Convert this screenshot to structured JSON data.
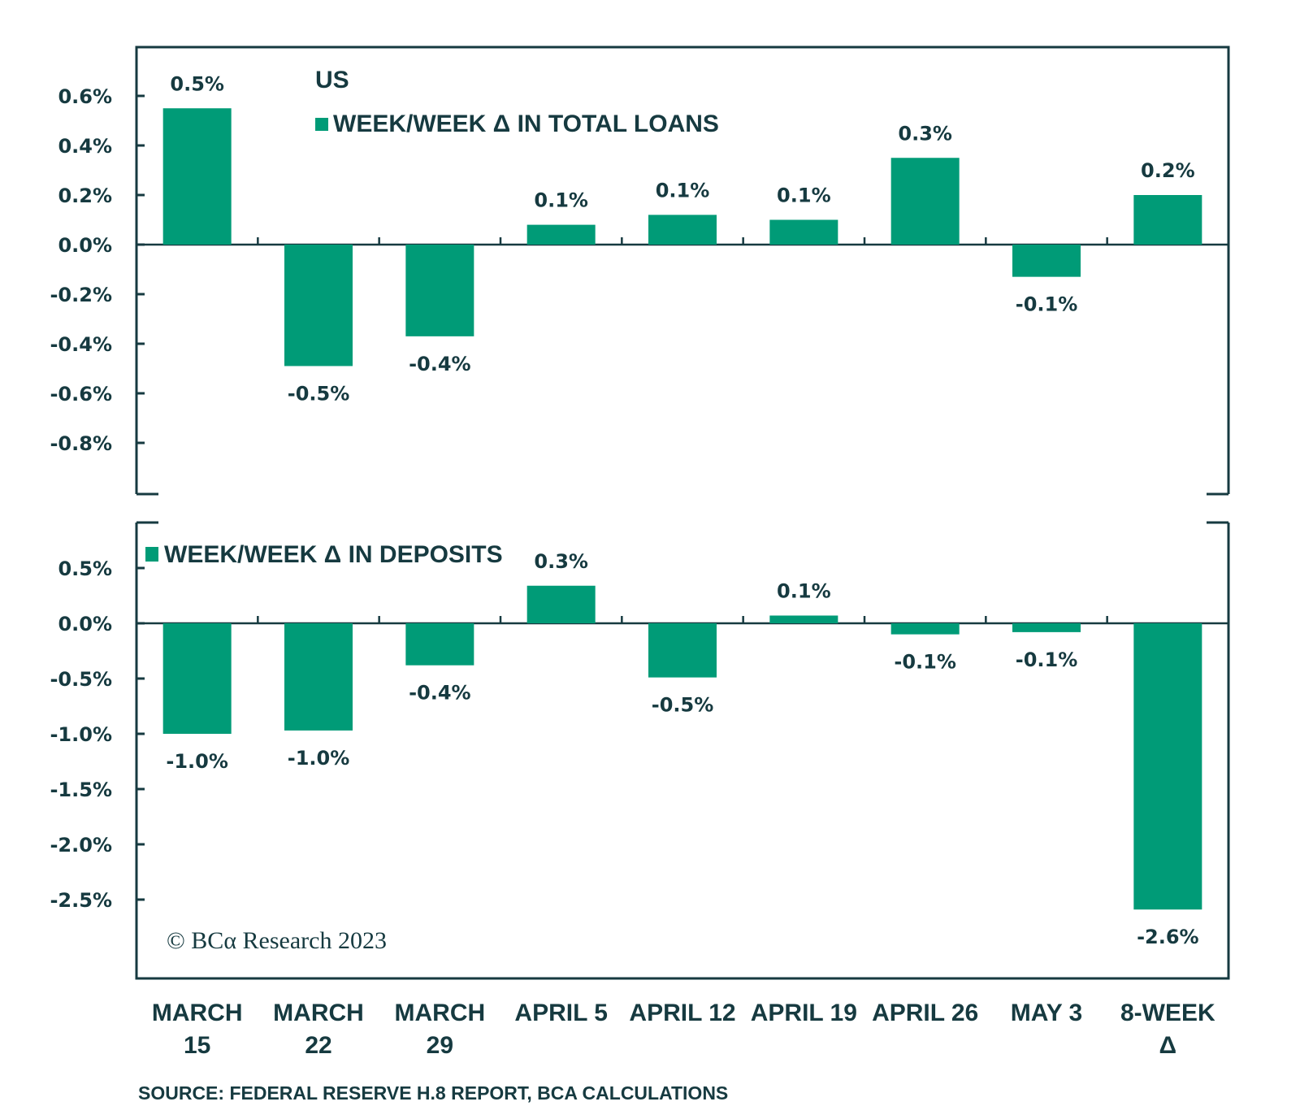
{
  "chart_data": [
    {
      "type": "bar",
      "panel": "top",
      "title": "US",
      "legend": [
        "WEEK/WEEK Δ IN TOTAL LOANS"
      ],
      "legend_position": "top-left",
      "categories": [
        "MARCH 15",
        "MARCH 22",
        "MARCH 29",
        "APRIL 5",
        "APRIL 12",
        "APRIL 19",
        "APRIL 26",
        "MAY 3",
        "8-WEEK Δ"
      ],
      "values": [
        0.55,
        -0.49,
        -0.37,
        0.08,
        0.12,
        0.1,
        0.35,
        -0.13,
        0.2
      ],
      "data_labels": [
        "0.5%",
        "-0.5%",
        "-0.4%",
        "0.1%",
        "0.1%",
        "0.1%",
        "0.3%",
        "-0.1%",
        "0.2%"
      ],
      "ylim": [
        -0.9,
        0.8
      ],
      "yticks": [
        0.6,
        0.4,
        0.2,
        0.0,
        -0.2,
        -0.4,
        -0.6,
        -0.8
      ],
      "ytick_labels": [
        "0.6%",
        "0.4%",
        "0.2%",
        "0.0%",
        "-0.2%",
        "-0.4%",
        "-0.6%",
        "-0.8%"
      ],
      "xlabel": "",
      "ylabel": "",
      "grid": false
    },
    {
      "type": "bar",
      "panel": "bottom",
      "title": "",
      "legend": [
        "WEEK/WEEK Δ IN DEPOSITS"
      ],
      "legend_position": "top-left",
      "categories": [
        "MARCH 15",
        "MARCH 22",
        "MARCH 29",
        "APRIL 5",
        "APRIL 12",
        "APRIL 19",
        "APRIL 26",
        "MAY 3",
        "8-WEEK Δ"
      ],
      "values": [
        -1.0,
        -0.97,
        -0.38,
        0.34,
        -0.49,
        0.07,
        -0.1,
        -0.08,
        -2.59
      ],
      "data_labels": [
        "-1.0%",
        "-1.0%",
        "-0.4%",
        "0.3%",
        "-0.5%",
        "0.1%",
        "-0.1%",
        "-0.1%",
        "-2.6%"
      ],
      "ylim": [
        -3.0,
        0.9
      ],
      "yticks": [
        0.5,
        0.0,
        -0.5,
        -1.0,
        -1.5,
        -2.0,
        -2.5
      ],
      "ytick_labels": [
        "0.5%",
        "0.0%",
        "-0.5%",
        "-1.0%",
        "-1.5%",
        "-2.0%",
        "-2.5%"
      ],
      "xlabel": "",
      "ylabel": "",
      "grid": false
    }
  ],
  "x_axis_labels": [
    [
      "MARCH",
      "15"
    ],
    [
      "MARCH",
      "22"
    ],
    [
      "MARCH",
      "29"
    ],
    [
      "APRIL 5"
    ],
    [
      "APRIL 12"
    ],
    [
      "APRIL 19"
    ],
    [
      "APRIL 26"
    ],
    [
      "MAY 3"
    ],
    [
      "8-WEEK",
      "Δ"
    ]
  ],
  "colors": {
    "bar": "#009b77",
    "axis": "#163a40",
    "text": "#163a40"
  },
  "copyright": "© BCα Research 2023",
  "source": "SOURCE: FEDERAL RESERVE H.8 REPORT, BCA CALCULATIONS"
}
